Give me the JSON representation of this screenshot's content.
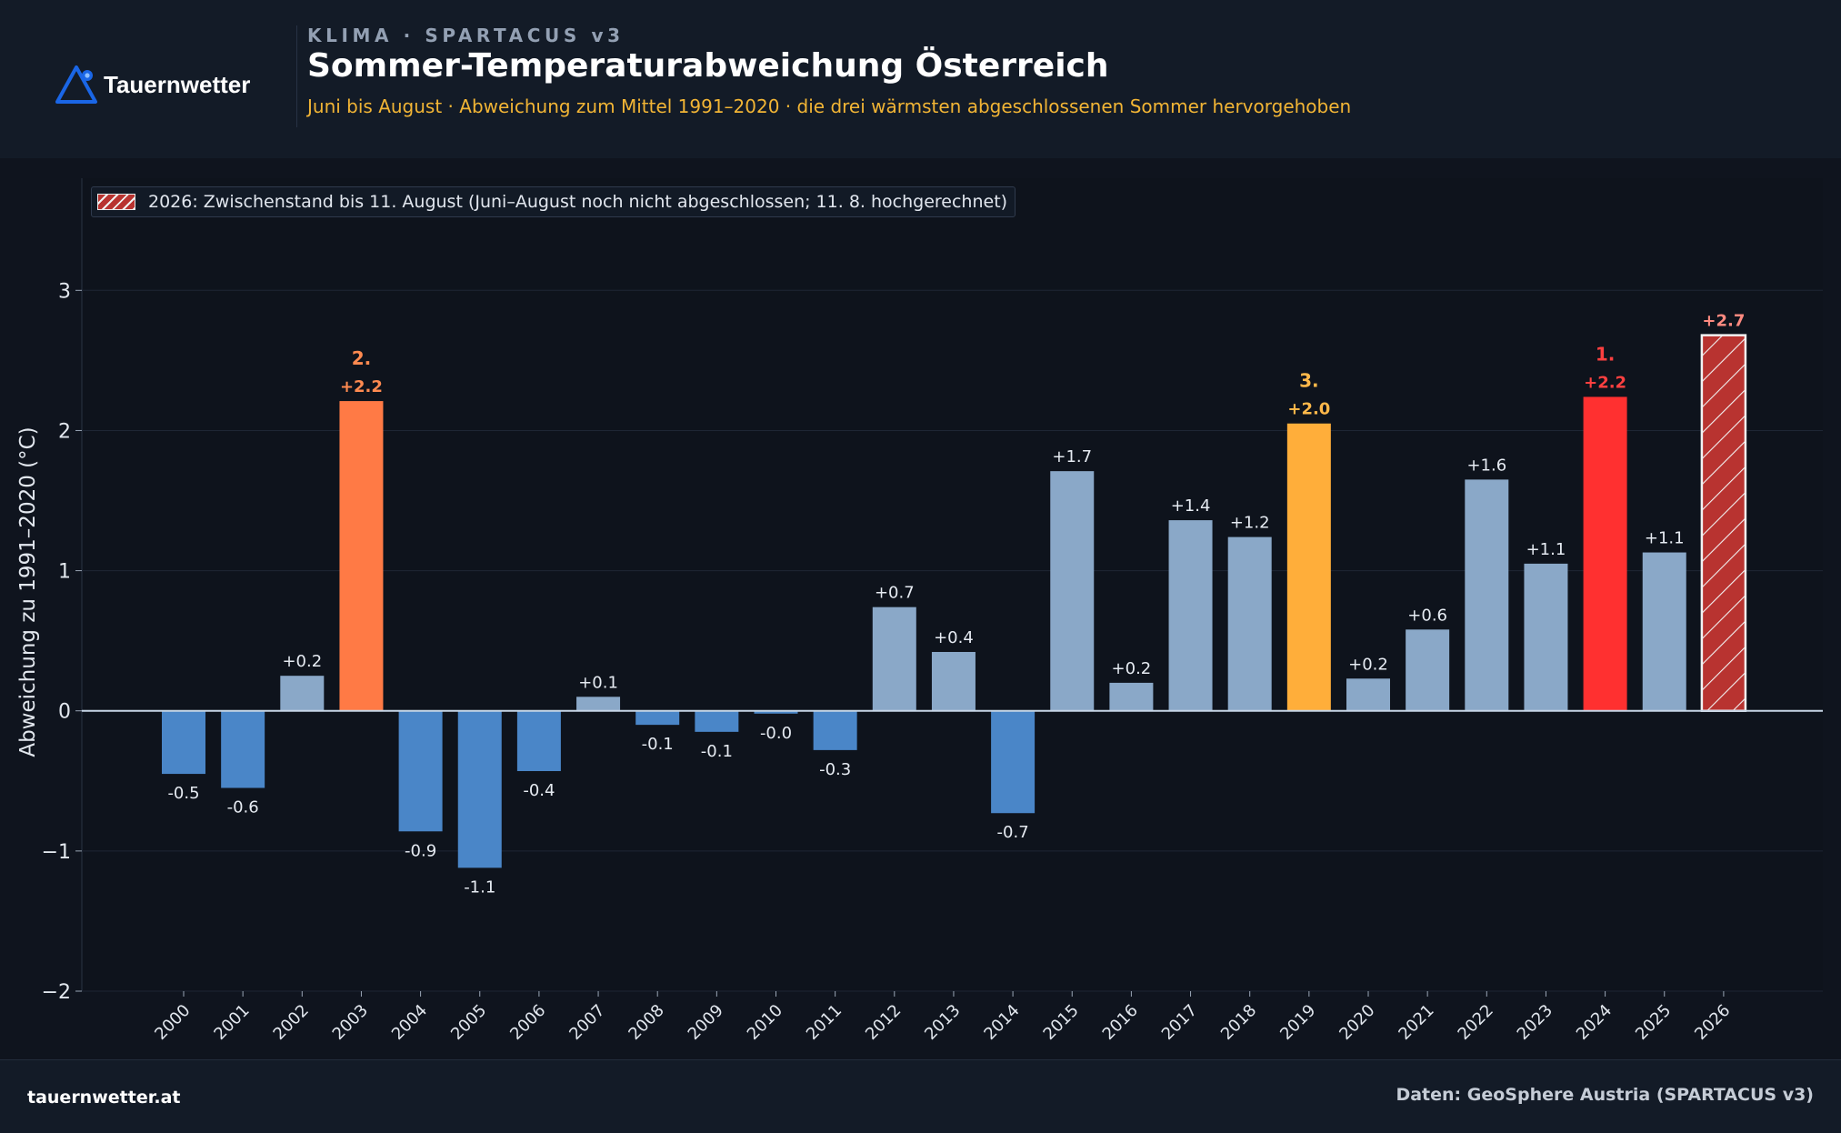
{
  "brand": {
    "logo_text": "Tauernwetter",
    "site": "tauernwetter.at"
  },
  "header": {
    "kicker": "KLIMA · SPARTACUS v3",
    "title": "Sommer-Temperaturabweichung Österreich",
    "subtitle": "Juni bis August · Abweichung zum Mittel 1991–2020 · die drei wärmsten abgeschlossenen Sommer hervorgehoben"
  },
  "footer": {
    "source": "Daten: GeoSphere Austria (SPARTACUS v3)"
  },
  "colors": {
    "background": "#0f141e",
    "header_bg": "#131b27",
    "negative": "#4a86c8",
    "positive": "#8aa8c8",
    "rank1": "#ff3030",
    "rank2": "#ff7a45",
    "rank3": "#ffae3a",
    "provisional": "#b83330",
    "rank1_label": "#ff4040",
    "rank2_label": "#ff8a50",
    "rank3_label": "#ffb84a",
    "provisional_label": "#ff8a80"
  },
  "chart_data": {
    "type": "bar",
    "title": "Sommer-Temperaturabweichung Österreich",
    "ylabel": "Abweichung zu 1991–2020 (°C)",
    "xlabel": "",
    "ylim": [
      -2,
      3.8
    ],
    "yticks": [
      -2,
      -1,
      0,
      1,
      2,
      3
    ],
    "ytick_labels": [
      "−2",
      "−1",
      "0",
      "1",
      "2",
      "3"
    ],
    "grid": true,
    "legend_position": "top-left",
    "legend": [
      {
        "label": "2026: Zwischenstand bis 11. August (Juni–August noch nicht abgeschlossen; 11. 8. hochgerechnet)",
        "style": "hatched"
      }
    ],
    "categories": [
      "2000",
      "2001",
      "2002",
      "2003",
      "2004",
      "2005",
      "2006",
      "2007",
      "2008",
      "2009",
      "2010",
      "2011",
      "2012",
      "2013",
      "2014",
      "2015",
      "2016",
      "2017",
      "2018",
      "2019",
      "2020",
      "2021",
      "2022",
      "2023",
      "2024",
      "2025",
      "2026"
    ],
    "values": [
      -0.45,
      -0.55,
      0.25,
      2.21,
      -0.86,
      -1.12,
      -0.43,
      0.1,
      -0.1,
      -0.15,
      -0.02,
      -0.28,
      0.74,
      0.42,
      -0.73,
      1.71,
      0.2,
      1.36,
      1.24,
      2.05,
      0.23,
      0.58,
      1.65,
      1.05,
      2.24,
      1.13,
      2.68
    ],
    "data_labels": [
      "-0.5",
      "-0.6",
      "+0.2",
      "+2.2",
      "-0.9",
      "-1.1",
      "-0.4",
      "+0.1",
      "-0.1",
      "-0.1",
      "-0.0",
      "-0.3",
      "+0.7",
      "+0.4",
      "-0.7",
      "+1.7",
      "+0.2",
      "+1.4",
      "+1.2",
      "+2.0",
      "+0.2",
      "+0.6",
      "+1.6",
      "+1.1",
      "+2.2",
      "+1.1",
      "+2.7"
    ],
    "highlights": [
      {
        "year": "2024",
        "rank_label": "1.",
        "style": "rank1"
      },
      {
        "year": "2003",
        "rank_label": "2.",
        "style": "rank2"
      },
      {
        "year": "2019",
        "rank_label": "3.",
        "style": "rank3"
      }
    ],
    "provisional": {
      "year": "2026",
      "style": "hatched"
    }
  }
}
